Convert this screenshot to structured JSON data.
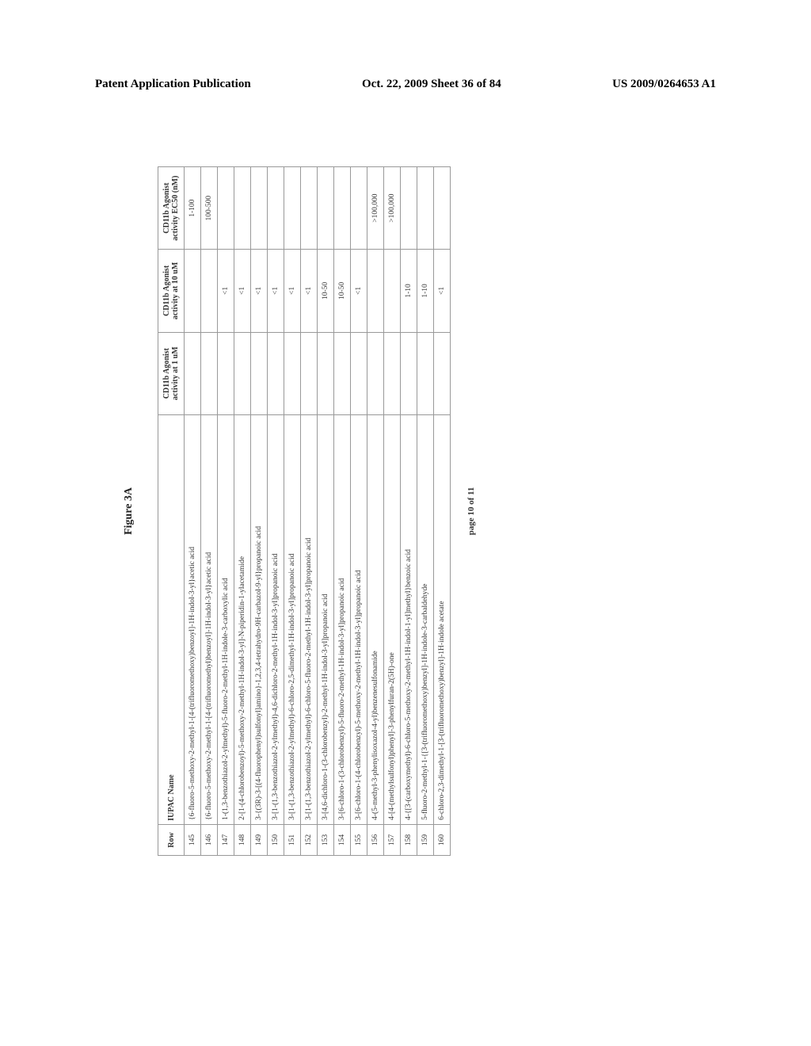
{
  "header": {
    "left": "Patent Application Publication",
    "center": "Oct. 22, 2009  Sheet 36 of 84",
    "right": "US 2009/0264653 A1"
  },
  "figure_label": "Figure 3A",
  "page_number": "page 10 of 11",
  "table": {
    "columns": [
      {
        "key": "row",
        "label": "Row",
        "class": "col-row"
      },
      {
        "key": "name",
        "label": "IUPAC Name",
        "class": "col-name"
      },
      {
        "key": "a1",
        "label": "CD11b Agonist activity at 1 uM",
        "class": "col-a1"
      },
      {
        "key": "a10",
        "label": "CD11b Agonist activity at 10 uM",
        "class": "col-a10"
      },
      {
        "key": "ec50",
        "label": "CD11b Agonist activity EC50 (nM)",
        "class": "col-ec50"
      }
    ],
    "rows": [
      {
        "row": "145",
        "name": "{6-fluoro-5-methoxy-2-methyl-1-[4-(trifluoromethoxy)benzoyl]-1H-indol-3-yl}acetic acid",
        "a1": "",
        "a10": "",
        "ec50": "1-100"
      },
      {
        "row": "146",
        "name": "{6-fluoro-5-methoxy-2-methyl-1-[4-(trifluoromethyl)benzoyl]-1H-indol-3-yl}acetic acid",
        "a1": "",
        "a10": "",
        "ec50": "100-500"
      },
      {
        "row": "147",
        "name": "1-(1,3-benzothiazol-2-ylmethyl)-5-fluoro-2-methyl-1H-indole-3-carboxylic acid",
        "a1": "",
        "a10": "<1",
        "ec50": ""
      },
      {
        "row": "148",
        "name": "2-[1-(4-chlorobenzoyl)-5-methoxy-2-methyl-1H-indol-3-yl]-N-piperidin-1-ylacetamide",
        "a1": "",
        "a10": "<1",
        "ec50": ""
      },
      {
        "row": "149",
        "name": "3-{(3R)-3-[(4-fluorophenyl)sulfonyl]amino}-1,2,3,4-tetrahydro-9H-carbazol-9-yl}propanoic acid",
        "a1": "",
        "a10": "<1",
        "ec50": ""
      },
      {
        "row": "150",
        "name": "3-[1-(1,3-benzothiazol-2-ylmethyl)-4,6-dichloro-2-methyl-1H-indol-3-yl]propanoic acid",
        "a1": "",
        "a10": "<1",
        "ec50": ""
      },
      {
        "row": "151",
        "name": "3-[1-(1,3-benzothiazol-2-ylmethyl)-6-chloro-2,5-dimethyl-1H-indol-3-yl]propanoic acid",
        "a1": "",
        "a10": "<1",
        "ec50": ""
      },
      {
        "row": "152",
        "name": "3-[1-(1,3-benzothiazol-2-ylmethyl)-6-chloro-5-fluoro-2-methyl-1H-indol-3-yl]propanoic acid",
        "a1": "",
        "a10": "<1",
        "ec50": ""
      },
      {
        "row": "153",
        "name": "3-[4,6-dichloro-1-(3-chlorobenzyl)-2-methyl-1H-indol-3-yl]propanoic acid",
        "a1": "",
        "a10": "10-50",
        "ec50": ""
      },
      {
        "row": "154",
        "name": "3-[6-chloro-1-(3-chlorobenzyl)-5-fluoro-2-methyl-1H-indol-3-yl]propanoic acid",
        "a1": "",
        "a10": "10-50",
        "ec50": ""
      },
      {
        "row": "155",
        "name": "3-[6-chloro-1-(4-chlorobenzyl)-5-methoxy-2-methyl-1H-indol-3-yl]propanoic acid",
        "a1": "",
        "a10": "<1",
        "ec50": ""
      },
      {
        "row": "156",
        "name": "4-(5-methyl-3-phenylisoxazol-4-yl)benzenesulfonamide",
        "a1": "",
        "a10": "",
        "ec50": ">100,000"
      },
      {
        "row": "157",
        "name": "4-[4-(methylsulfonyl)phenyl]-3-phenylfuran-2(5H)-one",
        "a1": "",
        "a10": "",
        "ec50": ">100,000"
      },
      {
        "row": "158",
        "name": "4-{[3-(carboxymethyl)-6-chloro-5-methoxy-2-methyl-1H-indol-1-yl]methyl}benzoic acid",
        "a1": "",
        "a10": "1-10",
        "ec50": ""
      },
      {
        "row": "159",
        "name": "5-fluoro-2-methyl-1-{[3-(trifluoromethoxy)benzyl]-1H-indole-3-carbaldehyde",
        "a1": "",
        "a10": "1-10",
        "ec50": ""
      },
      {
        "row": "160",
        "name": "6-chloro-2,3-dimethyl-1-[3-(trifluoromethoxy)benzyl]-1H-indole acetate",
        "a1": "",
        "a10": "<1",
        "ec50": ""
      }
    ]
  }
}
